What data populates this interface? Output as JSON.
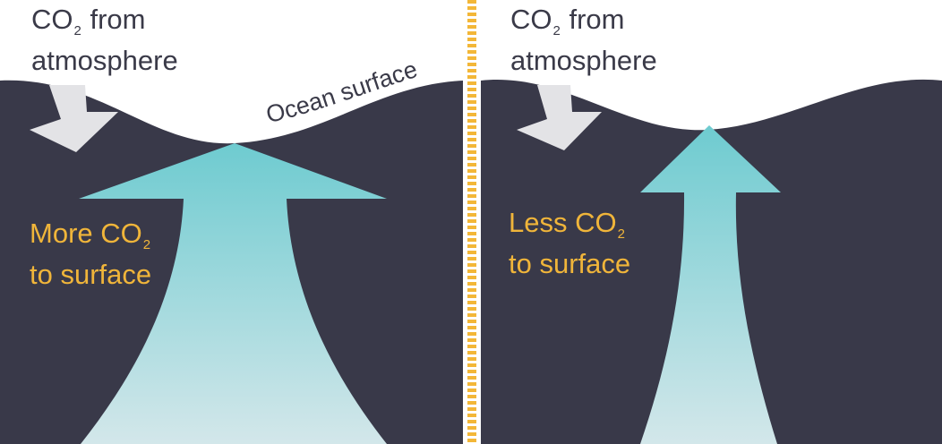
{
  "colors": {
    "ocean": "#393949",
    "divider": "#f3b738",
    "co2_arrow": "#e3e3e6",
    "upwelling_top": "#6ecbd0",
    "upwelling_bottom": "#d3e7ea",
    "text_dark": "#3a3a48",
    "text_gold": "#f0b53a"
  },
  "surface_label": "Ocean surface",
  "panels": [
    {
      "atmosphere_label": {
        "line1_pre": "CO",
        "line1_sub": "2",
        "line1_post": "from",
        "line2": "atmosphere"
      },
      "upwelling_label": {
        "line1_pre": "More CO",
        "line1_sub": "2",
        "line2": "to surface"
      }
    },
    {
      "atmosphere_label": {
        "line1_pre": "CO",
        "line1_sub": "2",
        "line1_post": "from",
        "line2": "atmosphere"
      },
      "upwelling_label": {
        "line1_pre": "Less CO",
        "line1_sub": "2",
        "line2": "to surface"
      }
    }
  ]
}
